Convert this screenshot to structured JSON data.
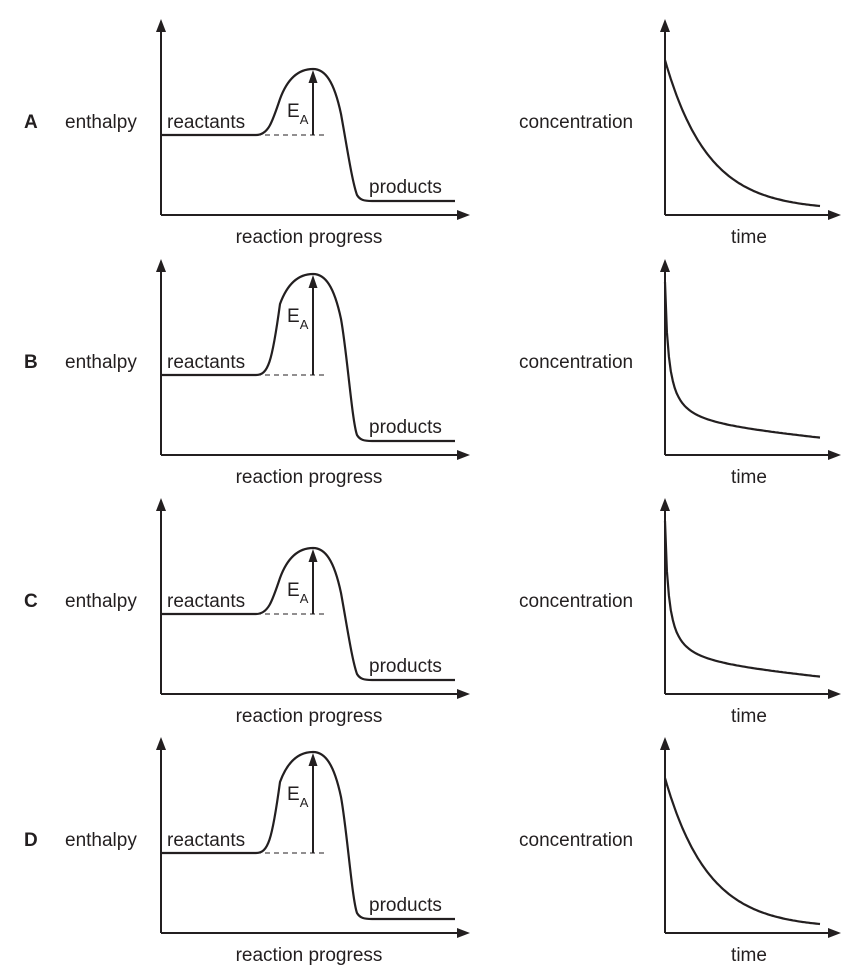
{
  "options": [
    {
      "letter": "A",
      "enthalpy_plot": {
        "y_label": "enthalpy",
        "x_label": "reaction progress",
        "reactants_label": "reactants",
        "products_label": "products",
        "activation_energy_label": "E",
        "activation_energy_subscript": "A",
        "peak_height": "low"
      },
      "concentration_plot": {
        "y_label": "concentration",
        "x_label": "time",
        "decay": "gradual"
      }
    },
    {
      "letter": "B",
      "enthalpy_plot": {
        "y_label": "enthalpy",
        "x_label": "reaction progress",
        "reactants_label": "reactants",
        "products_label": "products",
        "activation_energy_label": "E",
        "activation_energy_subscript": "A",
        "peak_height": "high"
      },
      "concentration_plot": {
        "y_label": "concentration",
        "x_label": "time",
        "decay": "steep"
      }
    },
    {
      "letter": "C",
      "enthalpy_plot": {
        "y_label": "enthalpy",
        "x_label": "reaction progress",
        "reactants_label": "reactants",
        "products_label": "products",
        "activation_energy_label": "E",
        "activation_energy_subscript": "A",
        "peak_height": "low"
      },
      "concentration_plot": {
        "y_label": "concentration",
        "x_label": "time",
        "decay": "steep"
      }
    },
    {
      "letter": "D",
      "enthalpy_plot": {
        "y_label": "enthalpy",
        "x_label": "reaction progress",
        "reactants_label": "reactants",
        "products_label": "products",
        "activation_energy_label": "E",
        "activation_energy_subscript": "A",
        "peak_height": "high"
      },
      "concentration_plot": {
        "y_label": "concentration",
        "x_label": "time",
        "decay": "gradual"
      }
    }
  ]
}
